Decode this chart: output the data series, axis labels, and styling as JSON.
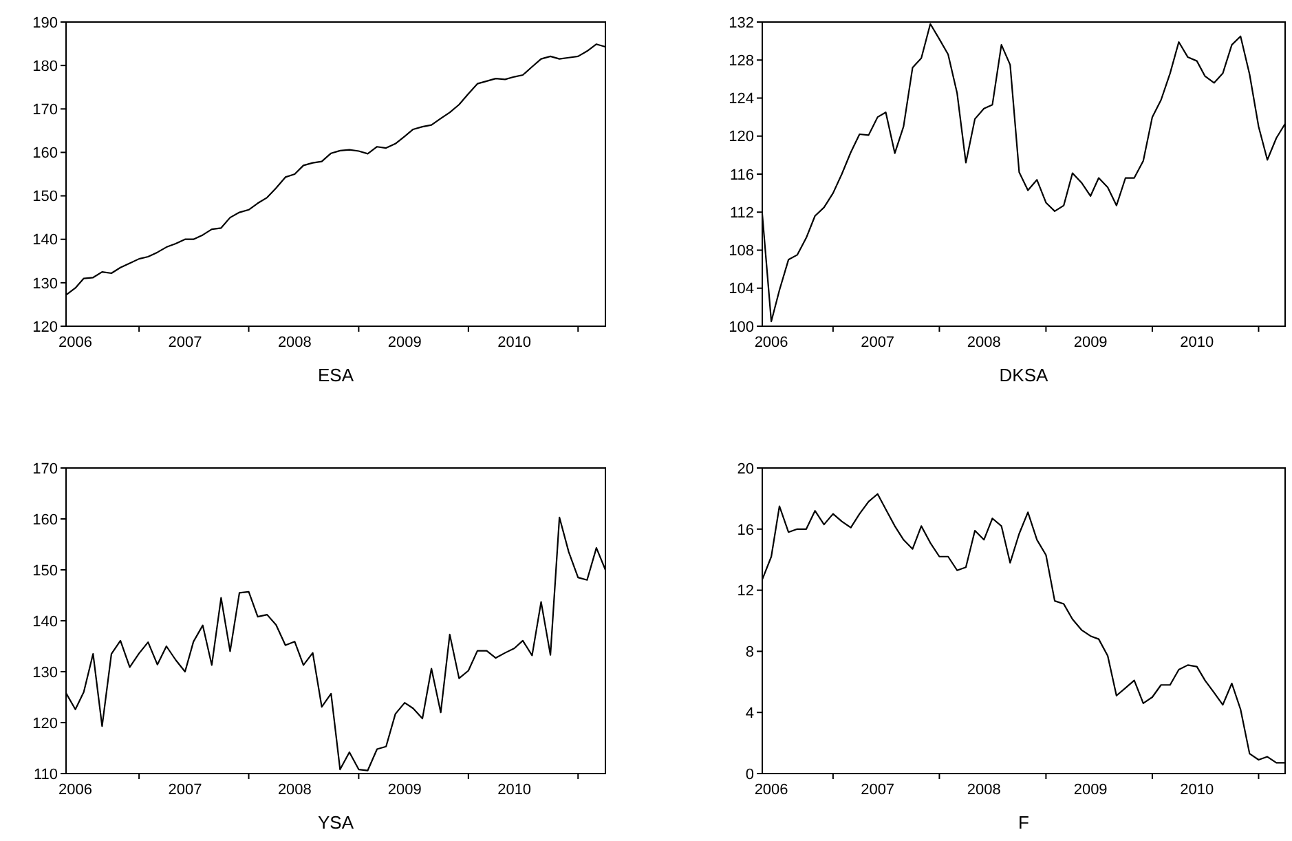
{
  "chart_data": [
    {
      "type": "line",
      "xlabel": "ESA",
      "x": [
        "2006-01",
        "2006-02",
        "2006-03",
        "2006-04",
        "2006-05",
        "2006-06",
        "2006-07",
        "2006-08",
        "2006-09",
        "2006-10",
        "2006-11",
        "2006-12",
        "2007-01",
        "2007-02",
        "2007-03",
        "2007-04",
        "2007-05",
        "2007-06",
        "2007-07",
        "2007-08",
        "2007-09",
        "2007-10",
        "2007-11",
        "2007-12",
        "2008-01",
        "2008-02",
        "2008-03",
        "2008-04",
        "2008-05",
        "2008-06",
        "2008-07",
        "2008-08",
        "2008-09",
        "2008-10",
        "2008-11",
        "2008-12",
        "2009-01",
        "2009-02",
        "2009-03",
        "2009-04",
        "2009-05",
        "2009-06",
        "2009-07",
        "2009-08",
        "2009-09",
        "2009-10",
        "2009-11",
        "2009-12",
        "2010-01",
        "2010-02",
        "2010-03",
        "2010-04",
        "2010-05",
        "2010-06",
        "2010-07",
        "2010-08",
        "2010-09",
        "2010-10",
        "2010-11",
        "2010-12"
      ],
      "series": [
        {
          "color": "#000000",
          "values": [
            127.2,
            128.8,
            131,
            131.2,
            132.5,
            132.2,
            133.5,
            134.5,
            135.5,
            136,
            137,
            138.2,
            139,
            140,
            140,
            141,
            142.3,
            142.6,
            145,
            146.2,
            146.8,
            148.3,
            149.6,
            151.8,
            154.3,
            155,
            157,
            157.6,
            157.9,
            159.8,
            160.4,
            160.6,
            160.3,
            159.7,
            161.3,
            161,
            162,
            163.7,
            165.3,
            165.9,
            166.3,
            167.8,
            169.2,
            171,
            173.5,
            175.8,
            176.4,
            177,
            176.8,
            177.4,
            177.8,
            179.7,
            181.5,
            182.1,
            181.5,
            181.8,
            182.1,
            183.3,
            184.9,
            184.3
          ]
        }
      ],
      "xlim": [
        "2006-01",
        "2010-12"
      ],
      "ylim": [
        120,
        190
      ],
      "yticks": [
        120,
        130,
        140,
        150,
        160,
        170,
        180,
        190
      ],
      "xticks": [
        {
          "value": "2006-02",
          "label": "2006"
        },
        {
          "value": "2007-02",
          "label": "2007"
        },
        {
          "value": "2008-02",
          "label": "2008"
        },
        {
          "value": "2009-02",
          "label": "2009"
        },
        {
          "value": "2010-02",
          "label": "2010"
        },
        {
          "value": "2006-09",
          "label": null
        },
        {
          "value": "2007-09",
          "label": null
        },
        {
          "value": "2008-09",
          "label": null
        },
        {
          "value": "2009-09",
          "label": null
        },
        {
          "value": "2010-09",
          "label": null
        }
      ],
      "grid": false
    },
    {
      "type": "line",
      "xlabel": "DKSA",
      "x": [
        "2006-01",
        "2006-02",
        "2006-03",
        "2006-04",
        "2006-05",
        "2006-06",
        "2006-07",
        "2006-08",
        "2006-09",
        "2006-10",
        "2006-11",
        "2006-12",
        "2007-01",
        "2007-02",
        "2007-03",
        "2007-04",
        "2007-05",
        "2007-06",
        "2007-07",
        "2007-08",
        "2007-09",
        "2007-10",
        "2007-11",
        "2007-12",
        "2008-01",
        "2008-02",
        "2008-03",
        "2008-04",
        "2008-05",
        "2008-06",
        "2008-07",
        "2008-08",
        "2008-09",
        "2008-10",
        "2008-11",
        "2008-12",
        "2009-01",
        "2009-02",
        "2009-03",
        "2009-04",
        "2009-05",
        "2009-06",
        "2009-07",
        "2009-08",
        "2009-09",
        "2009-10",
        "2009-11",
        "2009-12",
        "2010-01",
        "2010-02",
        "2010-03",
        "2010-04",
        "2010-05",
        "2010-06",
        "2010-07",
        "2010-08",
        "2010-09",
        "2010-10",
        "2010-11",
        "2010-12"
      ],
      "series": [
        {
          "color": "#000000",
          "values": [
            111.8,
            100.5,
            103.8,
            107,
            107.5,
            109.3,
            111.6,
            112.5,
            114,
            116,
            118.3,
            120.2,
            120.1,
            122,
            122.5,
            118.2,
            121,
            127.2,
            128.2,
            131.8,
            130.2,
            128.6,
            124.5,
            117.2,
            121.8,
            122.9,
            123.3,
            129.6,
            127.5,
            116.2,
            114.3,
            115.4,
            113,
            112.1,
            112.7,
            116.1,
            115.1,
            113.7,
            115.6,
            114.6,
            112.7,
            115.6,
            115.6,
            117.4,
            122,
            123.8,
            126.6,
            129.9,
            128.3,
            127.9,
            126.3,
            125.6,
            126.6,
            129.6,
            130.5,
            126.5,
            121,
            117.5,
            119.8,
            121.3
          ]
        }
      ],
      "xlim": [
        "2006-01",
        "2010-12"
      ],
      "ylim": [
        100,
        132
      ],
      "yticks": [
        100,
        104,
        108,
        112,
        116,
        120,
        124,
        128,
        132
      ],
      "xticks": [
        {
          "value": "2006-02",
          "label": "2006"
        },
        {
          "value": "2007-02",
          "label": "2007"
        },
        {
          "value": "2008-02",
          "label": "2008"
        },
        {
          "value": "2009-02",
          "label": "2009"
        },
        {
          "value": "2010-02",
          "label": "2010"
        },
        {
          "value": "2006-09",
          "label": null
        },
        {
          "value": "2007-09",
          "label": null
        },
        {
          "value": "2008-09",
          "label": null
        },
        {
          "value": "2009-09",
          "label": null
        },
        {
          "value": "2010-09",
          "label": null
        }
      ],
      "grid": false
    },
    {
      "type": "line",
      "xlabel": "YSA",
      "x": [
        "2006-01",
        "2006-02",
        "2006-03",
        "2006-04",
        "2006-05",
        "2006-06",
        "2006-07",
        "2006-08",
        "2006-09",
        "2006-10",
        "2006-11",
        "2006-12",
        "2007-01",
        "2007-02",
        "2007-03",
        "2007-04",
        "2007-05",
        "2007-06",
        "2007-07",
        "2007-08",
        "2007-09",
        "2007-10",
        "2007-11",
        "2007-12",
        "2008-01",
        "2008-02",
        "2008-03",
        "2008-04",
        "2008-05",
        "2008-06",
        "2008-07",
        "2008-08",
        "2008-09",
        "2008-10",
        "2008-11",
        "2008-12",
        "2009-01",
        "2009-02",
        "2009-03",
        "2009-04",
        "2009-05",
        "2009-06",
        "2009-07",
        "2009-08",
        "2009-09",
        "2009-10",
        "2009-11",
        "2009-12",
        "2010-01",
        "2010-02",
        "2010-03",
        "2010-04",
        "2010-05",
        "2010-06",
        "2010-07",
        "2010-08",
        "2010-09",
        "2010-10",
        "2010-11",
        "2010-12"
      ],
      "series": [
        {
          "color": "#000000",
          "values": [
            125.8,
            122.6,
            126,
            133.5,
            119.3,
            133.5,
            136.1,
            130.9,
            133.6,
            135.8,
            131.4,
            135,
            132.3,
            130,
            135.9,
            139.1,
            131.3,
            144.5,
            134,
            145.5,
            145.7,
            140.8,
            141.2,
            139.2,
            135.2,
            135.9,
            131.3,
            133.7,
            123.1,
            125.7,
            110.8,
            114.2,
            110.8,
            110.6,
            114.8,
            115.3,
            121.7,
            123.9,
            122.8,
            120.8,
            130.6,
            122,
            137.3,
            128.7,
            130.2,
            134.1,
            134.1,
            132.7,
            133.7,
            134.6,
            136.1,
            133.2,
            143.7,
            133.3,
            160.3,
            153.5,
            148.5,
            148,
            154.3,
            150
          ]
        }
      ],
      "xlim": [
        "2006-01",
        "2010-12"
      ],
      "ylim": [
        110,
        170
      ],
      "yticks": [
        110,
        120,
        130,
        140,
        150,
        160,
        170
      ],
      "xticks": [
        {
          "value": "2006-02",
          "label": "2006"
        },
        {
          "value": "2007-02",
          "label": "2007"
        },
        {
          "value": "2008-02",
          "label": "2008"
        },
        {
          "value": "2009-02",
          "label": "2009"
        },
        {
          "value": "2010-02",
          "label": "2010"
        },
        {
          "value": "2006-09",
          "label": null
        },
        {
          "value": "2007-09",
          "label": null
        },
        {
          "value": "2008-09",
          "label": null
        },
        {
          "value": "2009-09",
          "label": null
        },
        {
          "value": "2010-09",
          "label": null
        }
      ],
      "grid": false
    },
    {
      "type": "line",
      "xlabel": "F",
      "x": [
        "2006-01",
        "2006-02",
        "2006-03",
        "2006-04",
        "2006-05",
        "2006-06",
        "2006-07",
        "2006-08",
        "2006-09",
        "2006-10",
        "2006-11",
        "2006-12",
        "2007-01",
        "2007-02",
        "2007-03",
        "2007-04",
        "2007-05",
        "2007-06",
        "2007-07",
        "2007-08",
        "2007-09",
        "2007-10",
        "2007-11",
        "2007-12",
        "2008-01",
        "2008-02",
        "2008-03",
        "2008-04",
        "2008-05",
        "2008-06",
        "2008-07",
        "2008-08",
        "2008-09",
        "2008-10",
        "2008-11",
        "2008-12",
        "2009-01",
        "2009-02",
        "2009-03",
        "2009-04",
        "2009-05",
        "2009-06",
        "2009-07",
        "2009-08",
        "2009-09",
        "2009-10",
        "2009-11",
        "2009-12",
        "2010-01",
        "2010-02",
        "2010-03",
        "2010-04",
        "2010-05",
        "2010-06",
        "2010-07",
        "2010-08",
        "2010-09",
        "2010-10",
        "2010-11",
        "2010-12"
      ],
      "series": [
        {
          "color": "#000000",
          "values": [
            12.7,
            14.2,
            17.5,
            15.8,
            16,
            16,
            17.2,
            16.3,
            17,
            16.5,
            16.1,
            17,
            17.8,
            18.3,
            17.3,
            16.2,
            15.3,
            14.7,
            16.2,
            15.1,
            14.2,
            14.2,
            13.3,
            13.5,
            15.9,
            15.3,
            16.7,
            16.2,
            13.8,
            15.7,
            17.1,
            15.3,
            14.3,
            11.3,
            11.1,
            10.1,
            9.4,
            9,
            8.8,
            7.7,
            5.1,
            5.6,
            6.1,
            4.6,
            5,
            5.8,
            5.8,
            6.8,
            7.1,
            7,
            6.1,
            5.3,
            4.5,
            5.9,
            4.2,
            1.3,
            0.9,
            1.1,
            0.7,
            0.7
          ]
        }
      ],
      "xlim": [
        "2006-01",
        "2010-12"
      ],
      "ylim": [
        0,
        20
      ],
      "yticks": [
        0,
        4,
        8,
        12,
        16,
        20
      ],
      "xticks": [
        {
          "value": "2006-02",
          "label": "2006"
        },
        {
          "value": "2007-02",
          "label": "2007"
        },
        {
          "value": "2008-02",
          "label": "2008"
        },
        {
          "value": "2009-02",
          "label": "2009"
        },
        {
          "value": "2010-02",
          "label": "2010"
        },
        {
          "value": "2006-09",
          "label": null
        },
        {
          "value": "2007-09",
          "label": null
        },
        {
          "value": "2008-09",
          "label": null
        },
        {
          "value": "2009-09",
          "label": null
        },
        {
          "value": "2010-09",
          "label": null
        }
      ],
      "grid": false
    }
  ]
}
